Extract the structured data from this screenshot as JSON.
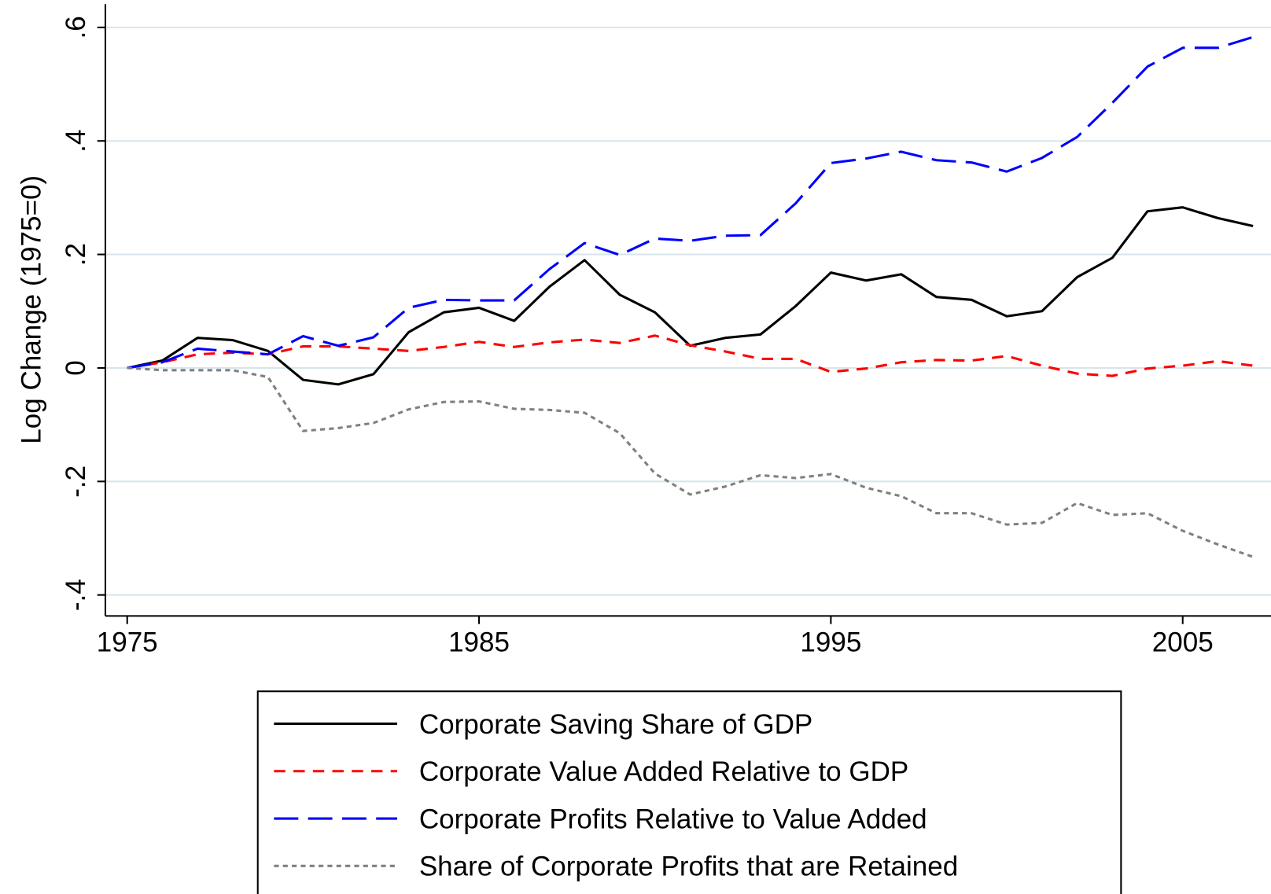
{
  "chart_data": {
    "type": "line",
    "y_label": "Log Change (1975=0)",
    "x": [
      1975,
      1976,
      1977,
      1978,
      1979,
      1980,
      1981,
      1982,
      1983,
      1984,
      1985,
      1986,
      1987,
      1988,
      1989,
      1990,
      1991,
      1992,
      1993,
      1994,
      1995,
      1996,
      1997,
      1998,
      1999,
      2000,
      2001,
      2002,
      2003,
      2004,
      2005,
      2006,
      2007
    ],
    "xlim": [
      1974.38,
      2007.51
    ],
    "xticks": [
      1975,
      1985,
      1995,
      2005
    ],
    "ylim": [
      -0.437,
      0.641
    ],
    "yticks": [
      {
        "value": -0.4,
        "label": "-.4"
      },
      {
        "value": -0.2,
        "label": "-.2"
      },
      0,
      {
        "value": 0.2,
        "label": ".2"
      },
      {
        "value": 0.4,
        "label": ".4"
      },
      {
        "value": 0.6,
        "label": ".6"
      }
    ],
    "grid": true,
    "legend": "bottom",
    "series": [
      {
        "name": "Corporate Saving Share of GDP",
        "color": "#000000",
        "dash": "none",
        "values": [
          0,
          0.013,
          0.053,
          0.049,
          0.03,
          -0.021,
          -0.029,
          -0.011,
          0.063,
          0.098,
          0.106,
          0.083,
          0.143,
          0.19,
          0.129,
          0.098,
          0.039,
          0.053,
          0.059,
          0.109,
          0.168,
          0.154,
          0.165,
          0.125,
          0.12,
          0.091,
          0.1,
          0.16,
          0.194,
          0.276,
          0.283,
          0.264,
          0.25
        ]
      },
      {
        "name": "Corporate Value Added Relative to GDP",
        "color": "#ff0000",
        "dash": "14 10",
        "values": [
          0,
          0.01,
          0.024,
          0.027,
          0.024,
          0.038,
          0.038,
          0.034,
          0.03,
          0.037,
          0.046,
          0.037,
          0.045,
          0.05,
          0.044,
          0.057,
          0.04,
          0.029,
          0.016,
          0.016,
          -0.007,
          -0.001,
          0.01,
          0.014,
          0.013,
          0.021,
          0.004,
          -0.01,
          -0.014,
          -0.001,
          0.004,
          0.012,
          0.004
        ]
      },
      {
        "name": "Corporate Profits Relative to Value Added",
        "color": "#0000ff",
        "dash": "30 12",
        "values": [
          0,
          0.01,
          0.034,
          0.029,
          0.024,
          0.056,
          0.039,
          0.054,
          0.106,
          0.12,
          0.119,
          0.119,
          0.174,
          0.22,
          0.199,
          0.228,
          0.224,
          0.233,
          0.234,
          0.29,
          0.361,
          0.369,
          0.381,
          0.366,
          0.362,
          0.346,
          0.37,
          0.407,
          0.467,
          0.531,
          0.564,
          0.564,
          0.583
        ]
      },
      {
        "name": "Share of Corporate Profits that are Retained",
        "color": "#808080",
        "dash": "6 5",
        "values": [
          0,
          -0.004,
          -0.004,
          -0.004,
          -0.016,
          -0.111,
          -0.106,
          -0.097,
          -0.073,
          -0.06,
          -0.059,
          -0.072,
          -0.074,
          -0.079,
          -0.115,
          -0.186,
          -0.223,
          -0.209,
          -0.189,
          -0.194,
          -0.187,
          -0.211,
          -0.226,
          -0.256,
          -0.256,
          -0.276,
          -0.273,
          -0.238,
          -0.259,
          -0.256,
          -0.287,
          -0.311,
          -0.333
        ]
      }
    ]
  }
}
